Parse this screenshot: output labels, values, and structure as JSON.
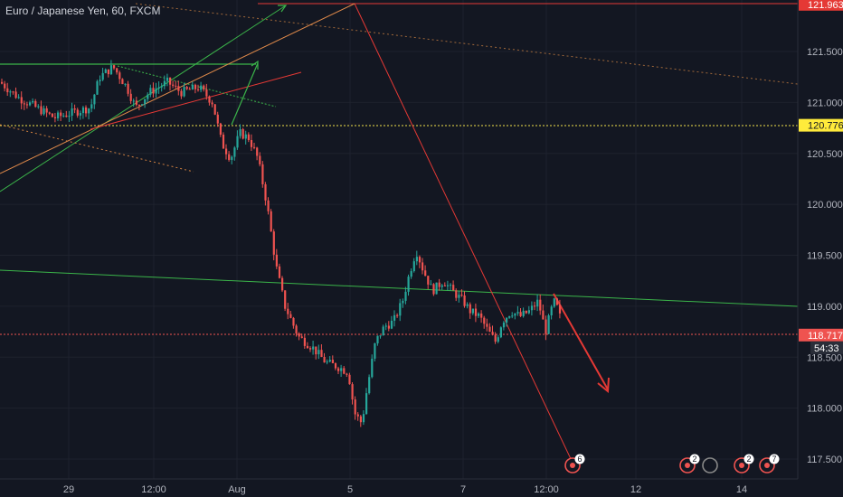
{
  "chart_data": {
    "type": "candlestick",
    "title": "Euro / Japanese Yen, 60, FXCM",
    "symbol": "Euro / Japanese Yen",
    "interval": "60",
    "source": "FXCM",
    "ylim": [
      117.4,
      122.0
    ],
    "y_ticks": [
      "121.500",
      "121.000",
      "120.500",
      "120.000",
      "119.500",
      "119.000",
      "118.500",
      "118.000",
      "117.500"
    ],
    "x_ticks": [
      "29",
      "12:00",
      "Aug",
      "5",
      "7",
      "12:00",
      "12",
      "14"
    ],
    "price_tags": [
      {
        "label": "121.963",
        "value": 121.963,
        "bg": "#e53935",
        "fg": "#ffffff"
      },
      {
        "label": "120.776",
        "value": 120.776,
        "bg": "#ffeb3b",
        "fg": "#131722"
      },
      {
        "label": "118.717",
        "value": 118.717,
        "bg": "#ef5350",
        "fg": "#ffffff"
      }
    ],
    "countdown": "54:33",
    "close_price": 118.717,
    "bull_color": "#26a69a",
    "bear_color": "#ef5350",
    "grid": true,
    "event_badges": [
      "6",
      "2",
      "2",
      "7"
    ]
  }
}
